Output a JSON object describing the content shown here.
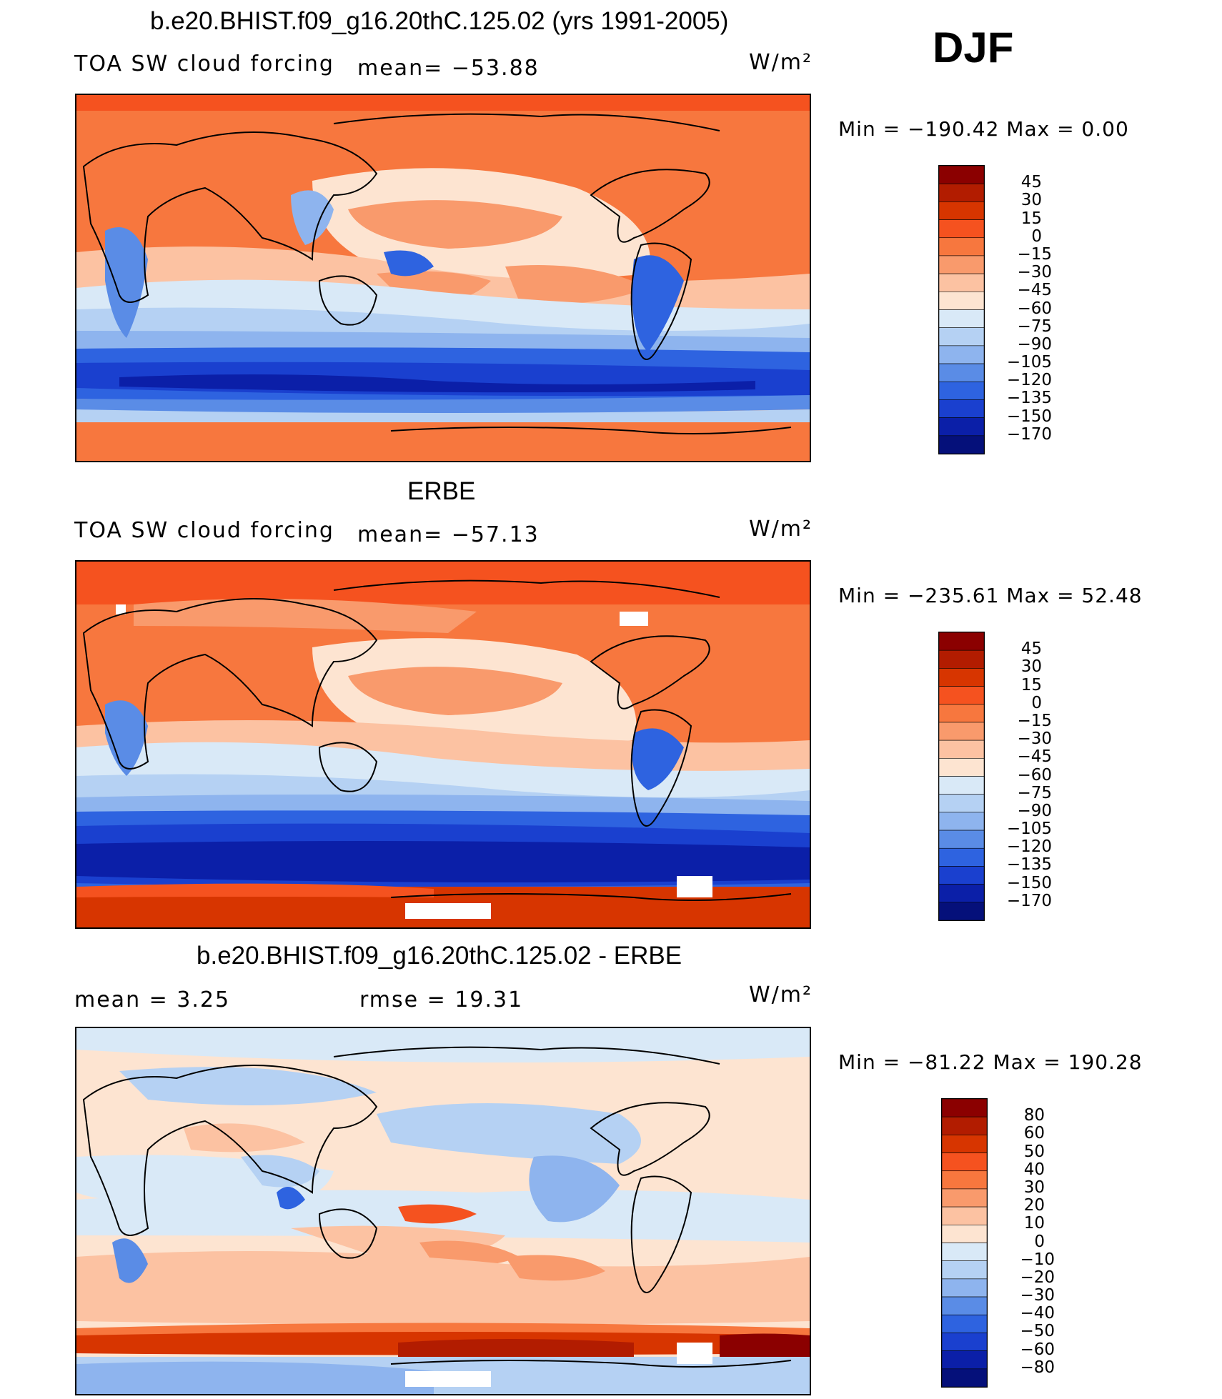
{
  "season": "DJF",
  "panels": [
    {
      "title": "b.e20.BHIST.f09_g16.20thC.125.02 (yrs 1991-2005)",
      "left_label": "TOA SW cloud forcing",
      "mean_text": "mean= −53.88",
      "units": "W/m²",
      "minmax": "Min  =  −190.42  Max  =     0.00",
      "palette": "cloud"
    },
    {
      "title": "ERBE",
      "left_label": "TOA SW cloud forcing",
      "mean_text": "mean= −57.13",
      "units": "W/m²",
      "minmax": "Min  =  −235.61  Max  =   52.48",
      "palette": "cloud"
    },
    {
      "title": "b.e20.BHIST.f09_g16.20thC.125.02 - ERBE",
      "left_label": "mean  =     3.25",
      "mean_text": "rmse  =    19.31",
      "units": "W/m²",
      "minmax": "Min  =  −81.22  Max  =  190.28",
      "palette": "diff"
    }
  ],
  "colorbars": {
    "cloud": {
      "labels": [
        "45",
        "30",
        "15",
        "0",
        "−15",
        "−30",
        "−45",
        "−60",
        "−75",
        "−90",
        "−105",
        "−120",
        "−135",
        "−150",
        "−170"
      ],
      "colors": [
        "#8b0000",
        "#b21c00",
        "#d73500",
        "#f5521f",
        "#f7773e",
        "#f99a6c",
        "#fcc2a2",
        "#fde4d1",
        "#d9e9f7",
        "#b5d1f3",
        "#8eb4ee",
        "#5a8ce6",
        "#2e63e0",
        "#1a40cf",
        "#0b1fa8",
        "#05107a"
      ]
    },
    "diff": {
      "labels": [
        "80",
        "60",
        "50",
        "40",
        "30",
        "20",
        "10",
        "0",
        "−10",
        "−20",
        "−30",
        "−40",
        "−50",
        "−60",
        "−80"
      ],
      "colors": [
        "#8b0000",
        "#b21c00",
        "#d73500",
        "#f5521f",
        "#f7773e",
        "#f99a6c",
        "#fcc2a2",
        "#fde4d1",
        "#d9e9f7",
        "#b5d1f3",
        "#8eb4ee",
        "#5a8ce6",
        "#2e63e0",
        "#1a40cf",
        "#0b1fa8",
        "#05107a"
      ]
    }
  },
  "chart_data": [
    {
      "type": "heatmap",
      "title": "b.e20.BHIST.f09_g16.20thC.125.02 (yrs 1991-2005)",
      "variable": "TOA SW cloud forcing",
      "units": "W/m²",
      "mean": -53.88,
      "min": -190.42,
      "max": 0.0,
      "contour_levels": [
        45,
        30,
        15,
        0,
        -15,
        -30,
        -45,
        -60,
        -75,
        -90,
        -105,
        -120,
        -135,
        -150,
        -170
      ],
      "legend_placement": "right"
    },
    {
      "type": "heatmap",
      "title": "ERBE",
      "variable": "TOA SW cloud forcing",
      "units": "W/m²",
      "mean": -57.13,
      "min": -235.61,
      "max": 52.48,
      "contour_levels": [
        45,
        30,
        15,
        0,
        -15,
        -30,
        -45,
        -60,
        -75,
        -90,
        -105,
        -120,
        -135,
        -150,
        -170
      ],
      "legend_placement": "right"
    },
    {
      "type": "heatmap",
      "title": "b.e20.BHIST.f09_g16.20thC.125.02 - ERBE",
      "units": "W/m²",
      "mean": 3.25,
      "rmse": 19.31,
      "min": -81.22,
      "max": 190.28,
      "contour_levels": [
        80,
        60,
        50,
        40,
        30,
        20,
        10,
        0,
        -10,
        -20,
        -30,
        -40,
        -50,
        -60,
        -80
      ],
      "legend_placement": "right"
    }
  ]
}
